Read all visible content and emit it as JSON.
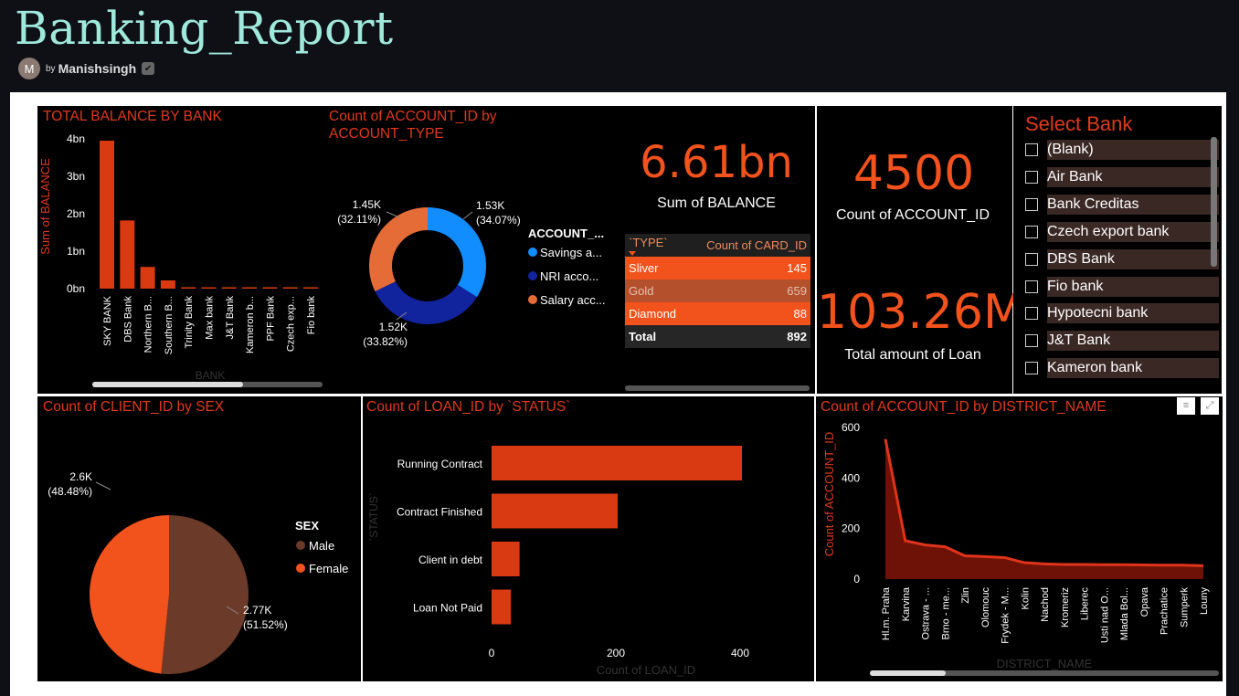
{
  "report": {
    "title": "Banking_Report",
    "by": "by",
    "author": "Manishsingh",
    "avatar_initial": "M"
  },
  "colors": {
    "accent": "#e03a1e",
    "bar": "#d93a12",
    "orange": "#f2521c",
    "blue": "#118dff",
    "navy": "#12239e",
    "brown": "#6b3a28"
  },
  "panels": {
    "balance_by_bank": {
      "title": "TOTAL BALANCE BY BANK"
    },
    "account_type": {
      "title_l1": "Count of ACCOUNT_ID by",
      "title_l2": "ACCOUNT_TYPE"
    },
    "sex": {
      "title": "Count of CLIENT_ID by SEX"
    },
    "loan_status": {
      "title": "Count of LOAN_ID by `STATUS`"
    },
    "district": {
      "title": "Count of ACCOUNT_ID by DISTRICT_NAME"
    }
  },
  "kpis": {
    "balance": {
      "value": "6.61bn",
      "label": "Sum of BALANCE"
    },
    "accounts": {
      "value": "4500",
      "label": "Count of ACCOUNT_ID"
    },
    "loan": {
      "value": "103.26M",
      "label": "Total amount of Loan"
    }
  },
  "card_table": {
    "headers": [
      "`TYPE`",
      "Count of CARD_ID"
    ],
    "rows": [
      {
        "type": "Sliver",
        "count": "145"
      },
      {
        "type": "Gold",
        "count": "659"
      },
      {
        "type": "Diamond",
        "count": "88"
      }
    ],
    "total_label": "Total",
    "total": "892"
  },
  "slicer": {
    "title": "Select Bank",
    "items": [
      "(Blank)",
      "Air Bank",
      "Bank Creditas",
      "Czech export bank",
      "DBS Bank",
      "Fio bank",
      "Hypotecni bank",
      "J&T Bank",
      "Kameron bank"
    ]
  },
  "chart_data": [
    {
      "type": "bar",
      "title": "TOTAL BALANCE BY BANK",
      "xlabel": "BANK",
      "ylabel": "Sum of BALANCE",
      "categories": [
        "SKY BANK",
        "DBS Bank",
        "Northern B...",
        "Southern B...",
        "Trinity Bank",
        "Max bank",
        "J&T Bank",
        "Kameron b...",
        "PPF Bank",
        "Czech exp...",
        "Fio bank"
      ],
      "values": [
        3.95,
        1.82,
        0.58,
        0.22,
        0.02,
        0.02,
        0.02,
        0.02,
        0.02,
        0.02,
        0.02
      ],
      "y_ticks": [
        "0bn",
        "1bn",
        "2bn",
        "3bn",
        "4bn"
      ],
      "ylim": [
        0,
        4
      ]
    },
    {
      "type": "pie",
      "title": "Count of ACCOUNT_ID by ACCOUNT_TYPE",
      "legend_title": "ACCOUNT_...",
      "slices": [
        {
          "name": "Savings a...",
          "value": 1530,
          "label": "1.53K",
          "pct": "(34.07%)",
          "color": "#118dff"
        },
        {
          "name": "NRI acco...",
          "value": 1520,
          "label": "1.52K",
          "pct": "(33.82%)",
          "color": "#12239e"
        },
        {
          "name": "Salary acc...",
          "value": 1450,
          "label": "1.45K",
          "pct": "(32.11%)",
          "color": "#e66c37"
        }
      ]
    },
    {
      "type": "pie",
      "title": "Count of CLIENT_ID by SEX",
      "legend_title": "SEX",
      "slices": [
        {
          "name": "Male",
          "value": 2770,
          "label": "2.77K",
          "pct": "(51.52%)",
          "color": "#6b3a28"
        },
        {
          "name": "Female",
          "value": 2600,
          "label": "2.6K",
          "pct": "(48.48%)",
          "color": "#f2521c"
        }
      ]
    },
    {
      "type": "bar",
      "title": "Count of LOAN_ID by `STATUS`",
      "xlabel": "Count of LOAN_ID",
      "ylabel": "`STATUS`",
      "categories": [
        "Running Contract",
        "Contract Finished",
        "Client in debt",
        "Loan Not Paid"
      ],
      "values": [
        403,
        203,
        45,
        31
      ],
      "x_ticks": [
        "0",
        "200",
        "400"
      ],
      "xlim": [
        0,
        430
      ]
    },
    {
      "type": "area",
      "title": "Count of ACCOUNT_ID by DISTRICT_NAME",
      "xlabel": "DISTRICT_NAME",
      "ylabel": "Count of ACCOUNT_ID",
      "categories": [
        "Hl.m. Praha",
        "Karvina",
        "Ostrava - ...",
        "Brno - me...",
        "Zlin",
        "Olomouc",
        "Frydek - M...",
        "Kolin",
        "Nachod",
        "Kromeriz",
        "Liberec",
        "Usti nad O...",
        "Mlada Bol...",
        "Opava",
        "Prachatice",
        "Sumperk",
        "Louny"
      ],
      "values": [
        554,
        152,
        135,
        128,
        92,
        89,
        85,
        65,
        60,
        58,
        58,
        57,
        57,
        56,
        55,
        55,
        53
      ],
      "y_ticks": [
        "0",
        "200",
        "400",
        "600"
      ],
      "ylim": [
        0,
        600
      ]
    }
  ]
}
